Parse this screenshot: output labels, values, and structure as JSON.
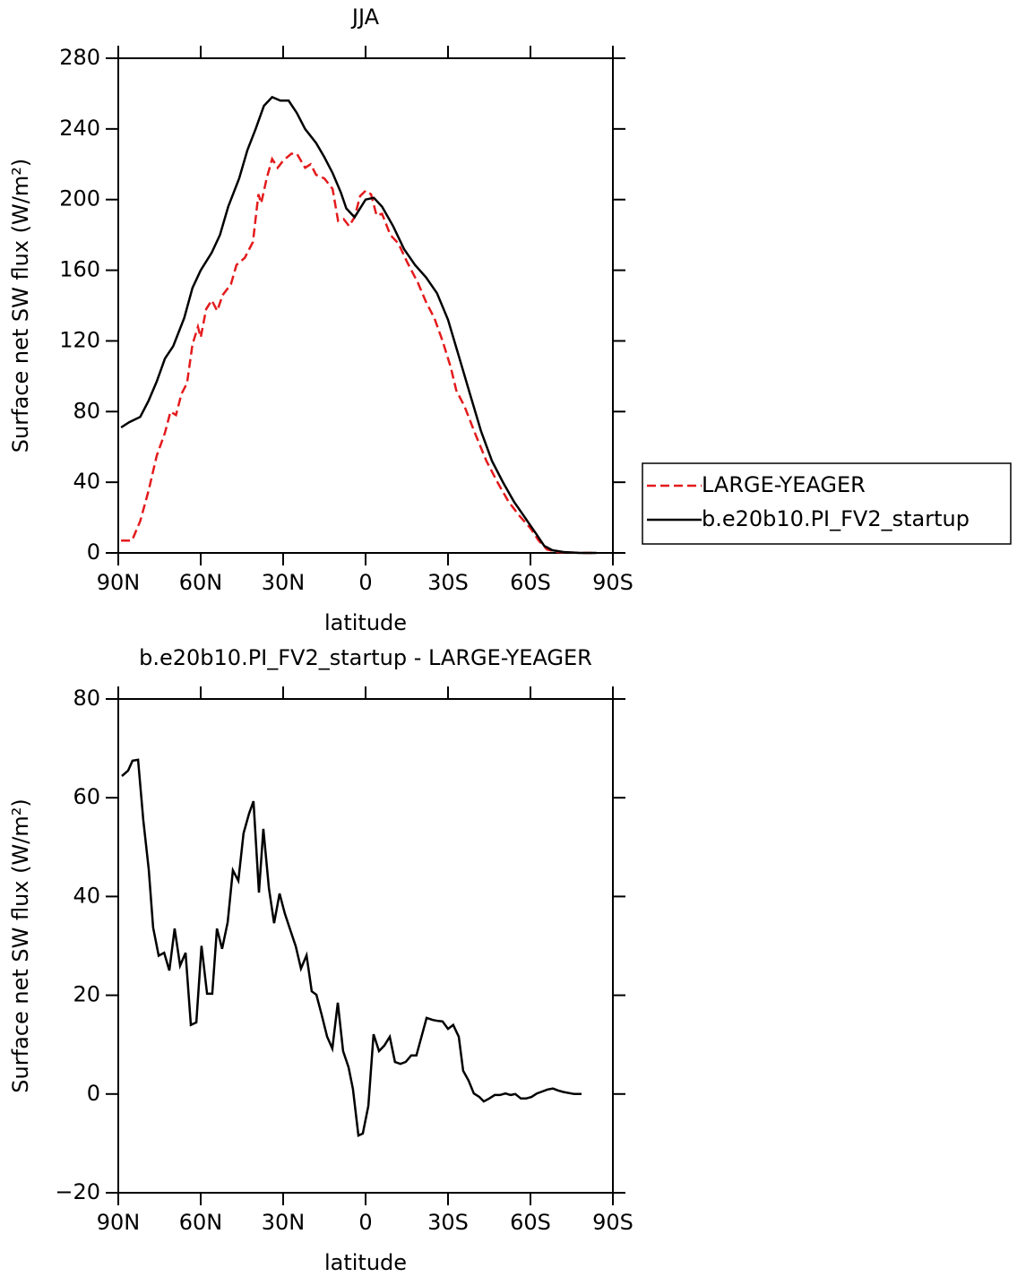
{
  "chart_data": [
    {
      "type": "line",
      "title": "JJA",
      "xlabel": "latitude",
      "ylabel": "Surface net SW flux (W/m²)",
      "xlim": [
        90,
        -90
      ],
      "xticks": [
        {
          "value": 90,
          "label": "90N"
        },
        {
          "value": 60,
          "label": "60N"
        },
        {
          "value": 30,
          "label": "30N"
        },
        0,
        {
          "value": -30,
          "label": "30S"
        },
        {
          "value": -60,
          "label": "60S"
        },
        {
          "value": -90,
          "label": "90S"
        }
      ],
      "ylim": [
        0,
        280
      ],
      "yticks": [
        0,
        40,
        80,
        120,
        160,
        200,
        240,
        280
      ],
      "legend": "right",
      "series": [
        {
          "name": "LARGE-YEAGER",
          "color": "#e41a1c",
          "linestyle": "dashed",
          "x": [
            89,
            85,
            82,
            79,
            76,
            73,
            71,
            69,
            67,
            65,
            63,
            61,
            60,
            58,
            56,
            54,
            52,
            49,
            47,
            44,
            41,
            39,
            38,
            36,
            34,
            32,
            30,
            27,
            25,
            22,
            20,
            18,
            15,
            12,
            10,
            8,
            6,
            4,
            2,
            0,
            -2,
            -4,
            -6,
            -9,
            -12,
            -15,
            -19,
            -22,
            -25,
            -28,
            -31,
            -33,
            -36,
            -40,
            -44,
            -48,
            -52,
            -56,
            -60,
            -63,
            -66,
            -70,
            -78,
            -84
          ],
          "values": [
            7,
            7,
            18,
            35,
            55,
            68,
            80,
            78,
            90,
            96,
            118,
            128,
            122,
            138,
            143,
            137,
            146,
            152,
            163,
            167,
            176,
            203,
            198,
            212,
            223,
            218,
            222,
            226,
            226,
            218,
            220,
            214,
            212,
            206,
            188,
            189,
            185,
            190,
            202,
            205,
            203,
            191,
            192,
            180,
            175,
            165,
            153,
            142,
            133,
            120,
            105,
            92,
            83,
            67,
            52,
            40,
            29,
            21,
            14,
            7,
            2,
            0.5,
            0,
            0
          ]
        },
        {
          "name": "b.e20b10.PI_FV2_startup",
          "color": "#000000",
          "linestyle": "solid",
          "x": [
            89,
            86,
            82,
            79,
            76,
            73,
            70,
            66,
            63,
            60,
            56,
            53,
            50,
            46,
            43,
            40,
            37,
            34,
            31,
            28,
            25,
            22,
            18,
            15,
            12,
            9,
            7,
            4,
            0,
            -3,
            -6,
            -10,
            -14,
            -18,
            -22,
            -26,
            -30,
            -34,
            -38,
            -42,
            -46,
            -50,
            -54,
            -58,
            -62,
            -65,
            -68,
            -72,
            -78,
            -84
          ],
          "values": [
            71,
            74,
            77,
            86,
            97,
            110,
            117,
            133,
            150,
            160,
            170,
            180,
            196,
            212,
            228,
            240,
            253,
            258,
            256,
            256,
            249,
            240,
            232,
            224,
            215,
            204,
            195,
            190,
            200,
            201,
            196,
            185,
            172,
            163,
            156,
            147,
            132,
            111,
            90,
            69,
            52,
            40,
            29,
            20,
            11,
            4,
            1.5,
            0.5,
            0,
            0
          ]
        }
      ]
    },
    {
      "type": "line",
      "title": "b.e20b10.PI_FV2_startup - LARGE-YEAGER",
      "xlabel": "latitude",
      "ylabel": "Surface net SW flux (W/m²)",
      "xlim": [
        90,
        -90
      ],
      "xticks": [
        {
          "value": 90,
          "label": "90N"
        },
        {
          "value": 60,
          "label": "60N"
        },
        {
          "value": 30,
          "label": "30N"
        },
        0,
        {
          "value": -30,
          "label": "30S"
        },
        {
          "value": -60,
          "label": "60S"
        },
        {
          "value": -90,
          "label": "90S"
        }
      ],
      "ylim": [
        -20,
        80
      ],
      "yticks": [
        {
          "value": -20,
          "label": "−20"
        },
        0,
        20,
        40,
        60,
        80
      ],
      "series": [
        {
          "color": "#000000",
          "linestyle": "solid",
          "x": [
            88.7,
            86.4,
            84.8,
            82.8,
            80.9,
            78.9,
            77.3,
            75.3,
            73.3,
            71.4,
            69.5,
            67.5,
            65.5,
            63.6,
            61.6,
            59.7,
            57.7,
            55.8,
            54.1,
            52.2,
            50.2,
            48.3,
            46.3,
            44.4,
            42.4,
            40.8,
            38.8,
            37.2,
            35.2,
            33.3,
            31.3,
            29.4,
            27.4,
            25.4,
            23.5,
            21.5,
            19.6,
            17.9,
            16,
            14,
            12.1,
            10.1,
            8.2,
            6.2,
            4.6,
            2.6,
            1,
            -1,
            -2.9,
            -4.9,
            -6.8,
            -8.8,
            -10.7,
            -12.7,
            -14.6,
            -16.6,
            -18.5,
            -22.2,
            -24.5,
            -26.4,
            -28,
            -30,
            -31.9,
            -33.9,
            -35.5,
            -37.5,
            -39.4,
            -41.4,
            -43,
            -45,
            -47,
            -48.9,
            -50.9,
            -52.8,
            -54.5,
            -56.5,
            -58.4,
            -60.4,
            -62.3,
            -64.3,
            -66.2,
            -68.2,
            -70.1,
            -72.1,
            -74,
            -76,
            -78.6
          ],
          "values": [
            64.4,
            65.5,
            67.5,
            67.7,
            55.5,
            45.5,
            33.7,
            28,
            28.6,
            25,
            33.5,
            26,
            28.6,
            14,
            14.5,
            30,
            20.3,
            20.3,
            33.5,
            29.4,
            34.8,
            45.3,
            43.2,
            52.8,
            56.8,
            59.3,
            40.8,
            53.7,
            41.7,
            34.6,
            40.6,
            36.6,
            33.2,
            29.9,
            25.4,
            28.1,
            20.8,
            20.1,
            16.1,
            11.6,
            9.2,
            18.5,
            8.7,
            5.4,
            1,
            -8.4,
            -8,
            -2.4,
            12.1,
            8.7,
            9.8,
            11.6,
            6.5,
            6.1,
            6.5,
            7.8,
            7.8,
            15.4,
            15,
            14.8,
            14.7,
            13.2,
            14,
            11.6,
            4.7,
            2.7,
            0.1,
            -0.6,
            -1.5,
            -0.9,
            -0.2,
            -0.2,
            0.1,
            -0.2,
            0,
            -0.9,
            -0.9,
            -0.6,
            0.1,
            0.5,
            0.9,
            1.1,
            0.7,
            0.4,
            0.2,
            0,
            0
          ]
        }
      ]
    }
  ]
}
